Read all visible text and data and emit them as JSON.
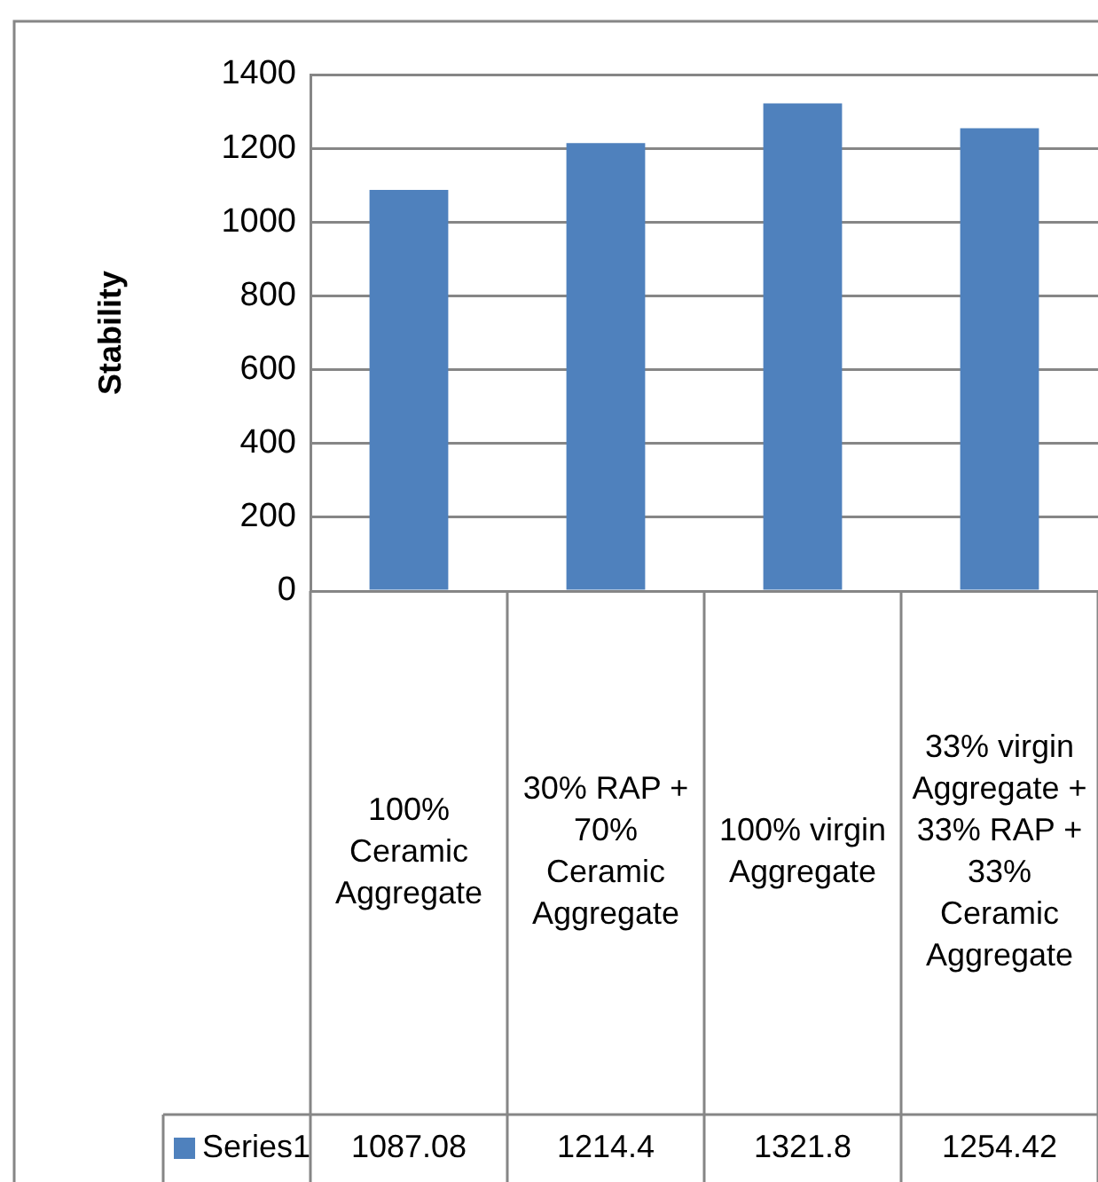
{
  "chart_data": {
    "type": "bar",
    "ylabel": "Stability",
    "categories": [
      "100% Ceramic Aggregate",
      "30% RAP + 70% Ceramic Aggregate",
      "100% virgin Aggregate",
      "33% virgin Aggregate + 33% RAP + 33% Ceramic Aggregate"
    ],
    "series": [
      {
        "name": "Series1",
        "color": "#4f81bd",
        "values": [
          1087.08,
          1214.4,
          1321.8,
          1254.42
        ]
      }
    ],
    "ylim": [
      0,
      1400
    ],
    "yticks": [
      0,
      200,
      400,
      600,
      800,
      1000,
      1200,
      1400
    ],
    "grid": "y",
    "legend": "bottom",
    "data_labels": true
  }
}
